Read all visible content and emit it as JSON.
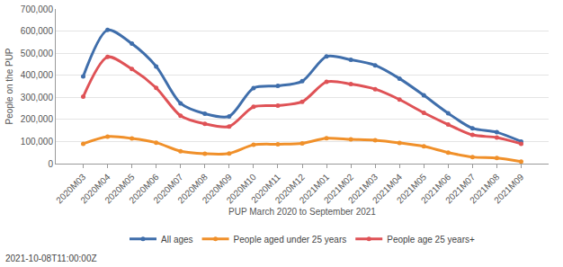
{
  "chart_data": {
    "type": "line",
    "x_label": "PUP March 2020 to September 2021",
    "y_label": "People on the PUP",
    "annotation": "2021-10-08T11:00:00Z",
    "categories": [
      "2020M03",
      "2020M04",
      "2020M05",
      "2020M06",
      "2020M07",
      "2020M08",
      "2020M09",
      "2020M10",
      "2020M11",
      "2020M12",
      "2021M01",
      "2021M02",
      "2021M03",
      "2021M04",
      "2021M05",
      "2021M06",
      "2021M07",
      "2021M08",
      "2021M09"
    ],
    "series": [
      {
        "name": "All ages",
        "color": "#3f6eab",
        "values": [
          395000,
          605000,
          543000,
          440000,
          273000,
          226000,
          214000,
          342000,
          352000,
          373000,
          485000,
          470000,
          445000,
          385000,
          309000,
          228000,
          160000,
          142000,
          100000
        ]
      },
      {
        "name": "People aged under 25 years",
        "color": "#f0902a",
        "values": [
          90000,
          122000,
          114000,
          95000,
          56000,
          45000,
          46000,
          85000,
          88000,
          92000,
          115000,
          110000,
          106000,
          94000,
          78000,
          50000,
          30000,
          25000,
          9000
        ]
      },
      {
        "name": "People age 25 years+",
        "color": "#df5256",
        "values": [
          303000,
          483000,
          428000,
          343000,
          217000,
          180000,
          168000,
          257000,
          263000,
          280000,
          370000,
          360000,
          337000,
          290000,
          230000,
          177000,
          130000,
          118000,
          90000
        ]
      }
    ],
    "ylim": [
      0,
      700000
    ],
    "yticks": [
      0,
      {
        "value": 100000,
        "label": "100,000"
      },
      {
        "value": 200000,
        "label": "200,000"
      },
      {
        "value": 300000,
        "label": "300,000"
      },
      {
        "value": 400000,
        "label": "400,000"
      },
      {
        "value": 500000,
        "label": "500,000"
      },
      {
        "value": 600000,
        "label": "600,000"
      },
      {
        "value": 700000,
        "label": "700,000"
      }
    ],
    "grid": true,
    "legend": "bottom",
    "marker": "circle",
    "line_style": "solid"
  }
}
